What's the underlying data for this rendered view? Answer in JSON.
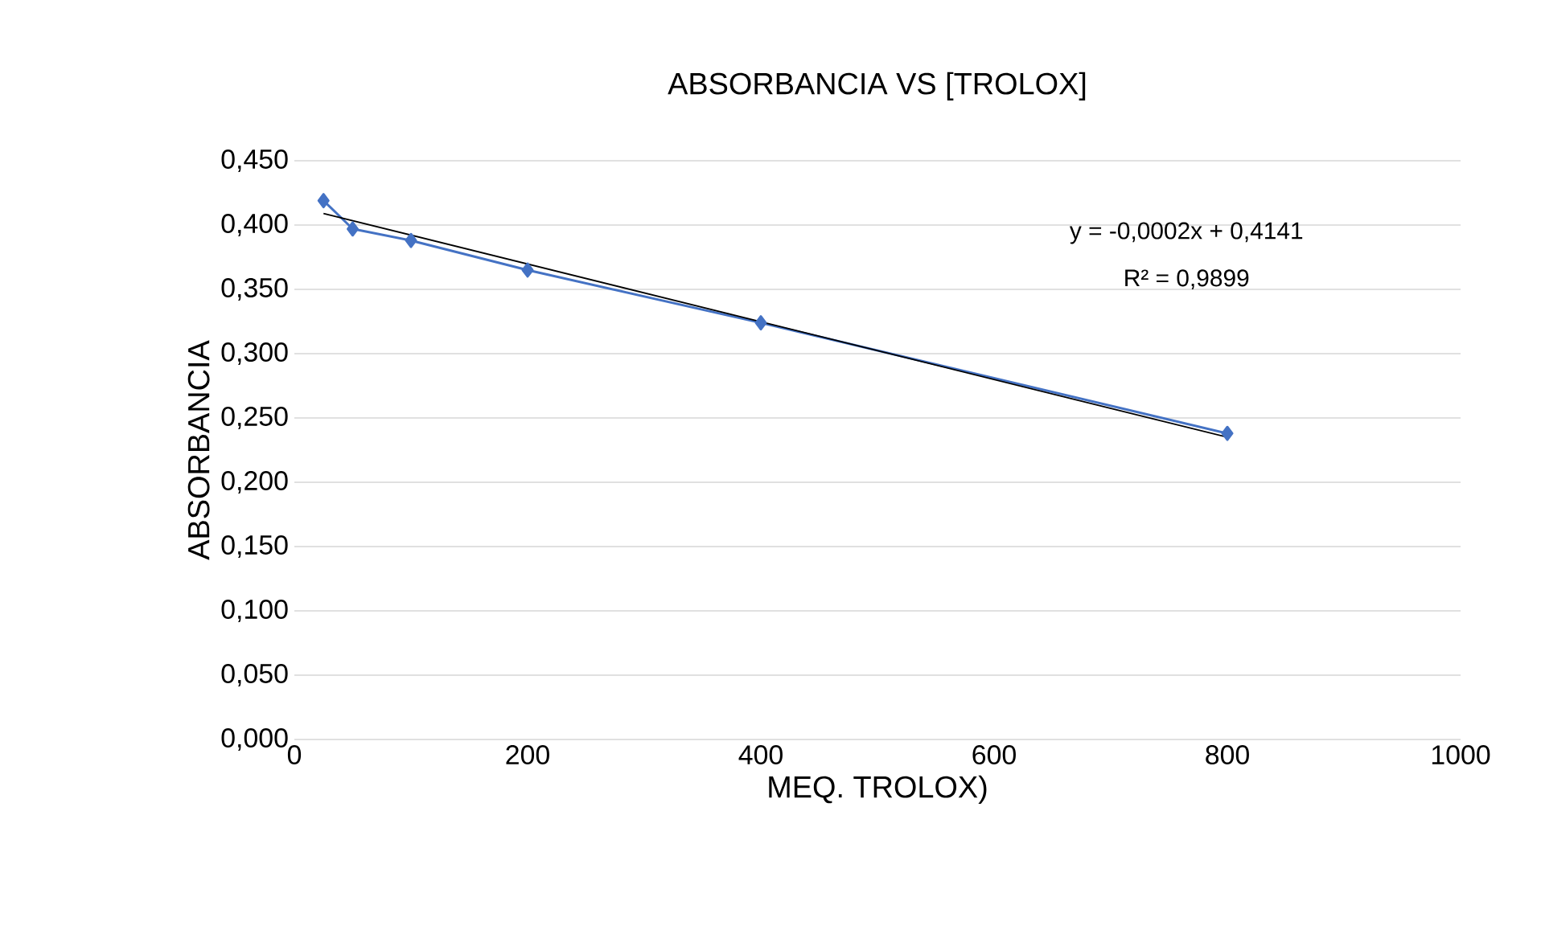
{
  "chart_data": {
    "type": "line",
    "title": "ABSORBANCIA VS [TROLOX]",
    "xlabel": "MEQ. TROLOX)",
    "ylabel": "ABSORBANCIA",
    "series": [
      {
        "color": "#4472c4",
        "x": [
          25,
          50,
          100,
          200,
          400,
          800
        ],
        "values": [
          0.419,
          0.397,
          0.388,
          0.365,
          0.324,
          0.238
        ],
        "marker": "diamond"
      },
      {
        "type": "line",
        "color": "#000000",
        "x": [
          25,
          800
        ],
        "values": [
          0.409,
          0.235
        ],
        "marker": "none"
      }
    ],
    "xlim": [
      0,
      1000
    ],
    "xticks": [
      0,
      200,
      400,
      600,
      800,
      1000
    ],
    "ylim": [
      0,
      0.45
    ],
    "yticks": [
      {
        "value": 0,
        "label": "0,000"
      },
      {
        "value": 0.05,
        "label": "0,050"
      },
      {
        "value": 0.1,
        "label": "0,100"
      },
      {
        "value": 0.15,
        "label": "0,150"
      },
      {
        "value": 0.2,
        "label": "0,200"
      },
      {
        "value": 0.25,
        "label": "0,250"
      },
      {
        "value": 0.3,
        "label": "0,300"
      },
      {
        "value": 0.35,
        "label": "0,350"
      },
      {
        "value": 0.4,
        "label": "0,400"
      },
      {
        "value": 0.45,
        "label": "0,450"
      }
    ],
    "annotations": [
      "y = -0,0002x + 0,4141",
      "R² = 0,9899"
    ],
    "grid": "y",
    "line_style": "solid"
  }
}
